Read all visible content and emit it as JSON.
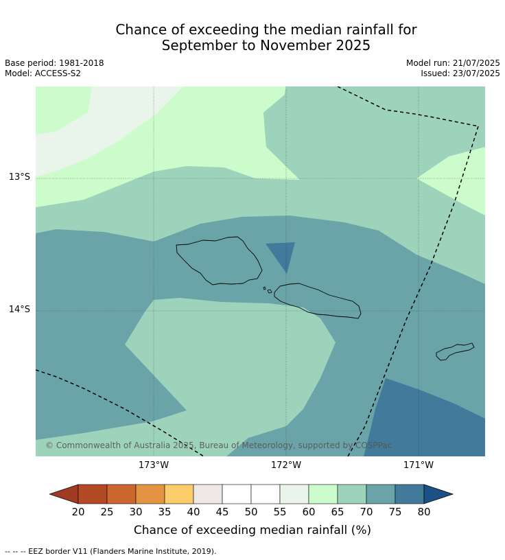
{
  "title": {
    "line1": "Chance of exceeding the median rainfall for",
    "line2": "September to November 2025"
  },
  "meta_left": {
    "base_period": "Base period: 1981-2018",
    "model": "Model: ACCESS-S2"
  },
  "meta_right": {
    "model_run": "Model run: 21/07/2025",
    "issued": "Issued: 23/07/2025"
  },
  "map": {
    "lat_labels": [
      "13°S",
      "14°S"
    ],
    "lon_labels": [
      "173°W",
      "172°W",
      "171°W"
    ],
    "copyright": "© Commonwealth of Australia 2025, Bureau of Meteorology, supported by COSPPac",
    "colors": {
      "band_50_55": "#ffffff",
      "band_55_60": "#e9f5ea",
      "band_60_65": "#ccfccc",
      "band_65_70": "#9ed3bb",
      "band_70_75": "#6aa4a8",
      "band_75_80": "#417a9b"
    }
  },
  "colorbar": {
    "label": "Chance of exceeding median rainfall (%)",
    "ticks": [
      "20",
      "25",
      "30",
      "35",
      "40",
      "45",
      "50",
      "55",
      "60",
      "65",
      "70",
      "75",
      "80"
    ],
    "colors": [
      "#a03a22",
      "#b34a26",
      "#cd6630",
      "#e39443",
      "#fdcc6a",
      "#efe9e5",
      "#ffffff",
      "#ffffff",
      "#e9f5ea",
      "#ccfccc",
      "#9ed3bb",
      "#6aa4a8",
      "#417a9b",
      "#1a5288"
    ]
  },
  "footer": "--  --  -- EEZ border V11 (Flanders Marine Institute, 2019)."
}
